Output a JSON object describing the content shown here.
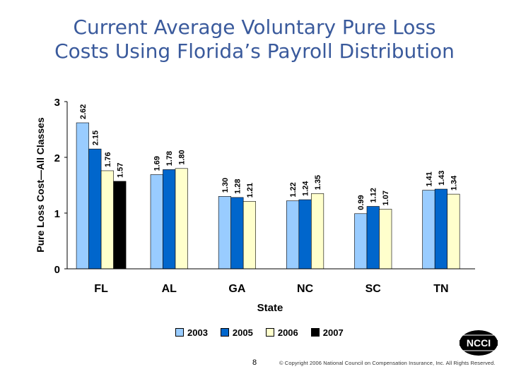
{
  "title": {
    "line1": "Current Average Voluntary Pure Loss",
    "line2": "Costs Using Florida’s Payroll Distribution"
  },
  "chart_data": {
    "type": "bar",
    "categories": [
      "FL",
      "AL",
      "GA",
      "NC",
      "SC",
      "TN"
    ],
    "series": [
      {
        "name": "2003",
        "color": "#99ccff",
        "values": [
          2.62,
          1.69,
          1.3,
          1.22,
          0.99,
          1.41
        ]
      },
      {
        "name": "2005",
        "color": "#0066cc",
        "values": [
          2.15,
          1.78,
          1.28,
          1.24,
          1.12,
          1.43
        ]
      },
      {
        "name": "2006",
        "color": "#ffffcc",
        "values": [
          1.76,
          1.8,
          1.21,
          1.35,
          1.07,
          1.34
        ]
      },
      {
        "name": "2007",
        "color": "#000000",
        "values": [
          1.57,
          null,
          null,
          null,
          null,
          null
        ]
      }
    ],
    "value_labels": [
      [
        "2.62",
        "2.15",
        "1.76",
        "1.57"
      ],
      [
        "1.69",
        "1.78",
        "1.80"
      ],
      [
        "1.30",
        "1.28",
        "1.21"
      ],
      [
        "1.22",
        "1.24",
        "1.35"
      ],
      [
        "0.99",
        "1.12",
        "1.07"
      ],
      [
        "1.41",
        "1.43",
        "1.34"
      ]
    ],
    "xlabel": "State",
    "ylabel": "Pure Loss Cost—All Classes",
    "ylim": [
      0,
      3
    ],
    "yticks": [
      "0",
      "1",
      "2",
      "3"
    ],
    "grid": false,
    "legend_position": "bottom"
  },
  "footer": {
    "page_number": "8",
    "copyright": "© Copyright 2006 National Council on Compensation Insurance, Inc. All Rights Reserved.",
    "logo_text": "NCCI"
  }
}
